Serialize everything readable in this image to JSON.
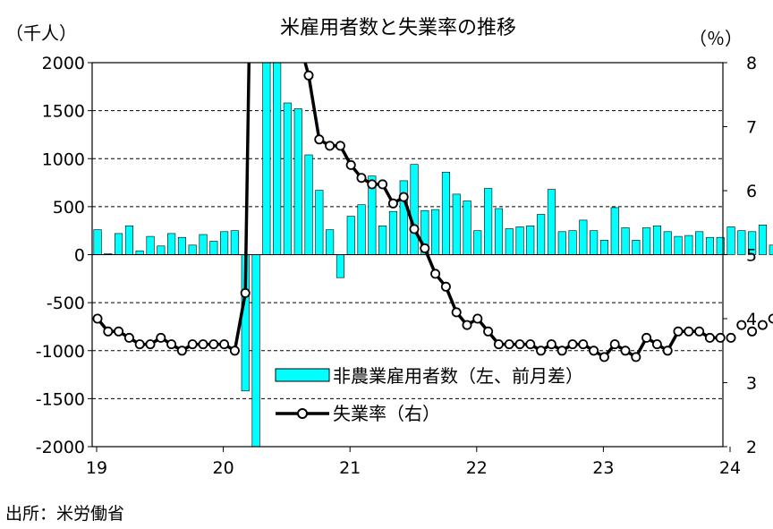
{
  "chart_data": {
    "type": "bar+line",
    "title": "米雇用者数と失業率の推移",
    "left_unit": "（千人）",
    "right_unit": "（％）",
    "source": "出所：米労働省",
    "x_tick_labels": [
      "19",
      "20",
      "21",
      "22",
      "23",
      "24"
    ],
    "left_ylim": [
      -2000,
      2000
    ],
    "left_ticks": [
      "2000",
      "1500",
      "1000",
      "500",
      "0",
      "-500",
      "-1000",
      "-1500",
      "-2000"
    ],
    "right_ylim": [
      2,
      8
    ],
    "right_ticks": [
      "8",
      "7",
      "6",
      "5",
      "4",
      "3",
      "2"
    ],
    "grid": "horizontal dashed",
    "legend_position": "bottom-right",
    "periods": [
      "2019-01",
      "2019-02",
      "2019-03",
      "2019-04",
      "2019-05",
      "2019-06",
      "2019-07",
      "2019-08",
      "2019-09",
      "2019-10",
      "2019-11",
      "2019-12",
      "2020-01",
      "2020-02",
      "2020-03",
      "2020-04",
      "2020-05",
      "2020-06",
      "2020-07",
      "2020-08",
      "2020-09",
      "2020-10",
      "2020-11",
      "2020-12",
      "2021-01",
      "2021-02",
      "2021-03",
      "2021-04",
      "2021-05",
      "2021-06",
      "2021-07",
      "2021-08",
      "2021-09",
      "2021-10",
      "2021-11",
      "2021-12",
      "2022-01",
      "2022-02",
      "2022-03",
      "2022-04",
      "2022-05",
      "2022-06",
      "2022-07",
      "2022-08",
      "2022-09",
      "2022-10",
      "2022-11",
      "2022-12",
      "2023-01",
      "2023-02",
      "2023-03",
      "2023-04",
      "2023-05",
      "2023-06",
      "2023-07",
      "2023-08",
      "2023-09",
      "2023-10",
      "2023-11",
      "2023-12",
      "2024-01",
      "2024-02",
      "2024-03",
      "2024-04",
      "2024-05",
      "2024-06"
    ],
    "series": [
      {
        "name": "非農業雇用者数（左、前月差）",
        "type": "bar",
        "axis": "left",
        "color": "#00ffff",
        "values": [
          260,
          10,
          220,
          300,
          40,
          190,
          90,
          220,
          180,
          100,
          210,
          140,
          240,
          250,
          -1420,
          -20500,
          2700,
          4800,
          1580,
          1520,
          1040,
          670,
          260,
          -240,
          400,
          520,
          820,
          300,
          450,
          770,
          940,
          460,
          470,
          860,
          630,
          560,
          250,
          690,
          480,
          270,
          290,
          300,
          420,
          680,
          240,
          250,
          360,
          250,
          150,
          490,
          280,
          150,
          280,
          300,
          240,
          190,
          200,
          240,
          180,
          180,
          290,
          250,
          240,
          310,
          100,
          210
        ]
      },
      {
        "name": "失業率（右）",
        "type": "line",
        "axis": "right",
        "color": "#000000",
        "values": [
          4.0,
          3.8,
          3.8,
          3.7,
          3.6,
          3.6,
          3.7,
          3.6,
          3.5,
          3.6,
          3.6,
          3.6,
          3.6,
          3.5,
          4.4,
          14.8,
          13.3,
          11.1,
          10.2,
          8.4,
          7.8,
          6.8,
          6.7,
          6.7,
          6.4,
          6.2,
          6.1,
          6.1,
          5.8,
          5.9,
          5.4,
          5.1,
          4.7,
          4.5,
          4.1,
          3.9,
          4.0,
          3.8,
          3.6,
          3.6,
          3.6,
          3.6,
          3.5,
          3.6,
          3.5,
          3.6,
          3.6,
          3.5,
          3.4,
          3.6,
          3.5,
          3.4,
          3.7,
          3.6,
          3.5,
          3.8,
          3.8,
          3.8,
          3.7,
          3.7,
          3.7,
          3.9,
          3.8,
          3.9,
          4.0,
          4.1
        ]
      }
    ]
  }
}
